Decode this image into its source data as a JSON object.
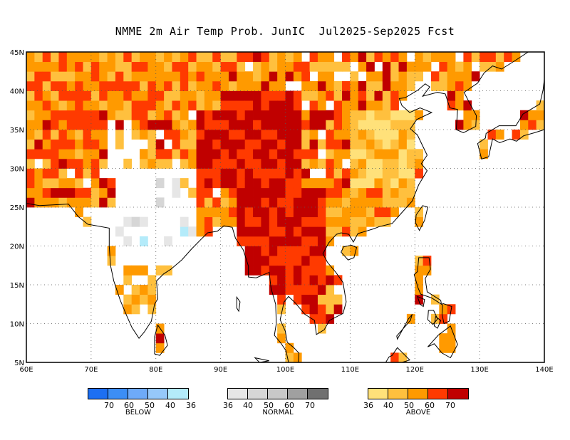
{
  "title": "NMME 2m Air Temp Prob. JunIC  Jul2025-Sep2025 Fcst",
  "map": {
    "lon_range": [
      60,
      140
    ],
    "lat_range": [
      5,
      45
    ],
    "y_labels": [
      "45N",
      "40N",
      "35N",
      "30N",
      "25N",
      "20N",
      "15N",
      "10N",
      "5N"
    ],
    "x_labels": [
      "60E",
      "70E",
      "80E",
      "90E",
      "100E",
      "110E",
      "120E",
      "130E",
      "140E"
    ],
    "gridlines": "dotted"
  },
  "categories": {
    "above_colors": [
      "#ffe17a",
      "#ffc03e",
      "#ff9a00",
      "#ff3a00",
      "#c00000"
    ],
    "normal_colors": [
      "#e6e6e6",
      "#d6d6d6",
      "#c8c8c8",
      "#a0a0a0",
      "#707070"
    ],
    "below_colors": [
      "#1d6ff2",
      "#3c8ef5",
      "#6eaaf8",
      "#96c8fa",
      "#b4ebfa"
    ]
  },
  "legends": {
    "below": {
      "label": "BELOW",
      "ticks": [
        "70",
        "60",
        "50",
        "40",
        "36"
      ]
    },
    "normal": {
      "label": "NORMAL",
      "ticks": [
        "36",
        "40",
        "50",
        "60",
        "70"
      ]
    },
    "above": {
      "label": "ABOVE",
      "ticks": [
        "36",
        "40",
        "50",
        "60",
        "70"
      ]
    }
  }
}
